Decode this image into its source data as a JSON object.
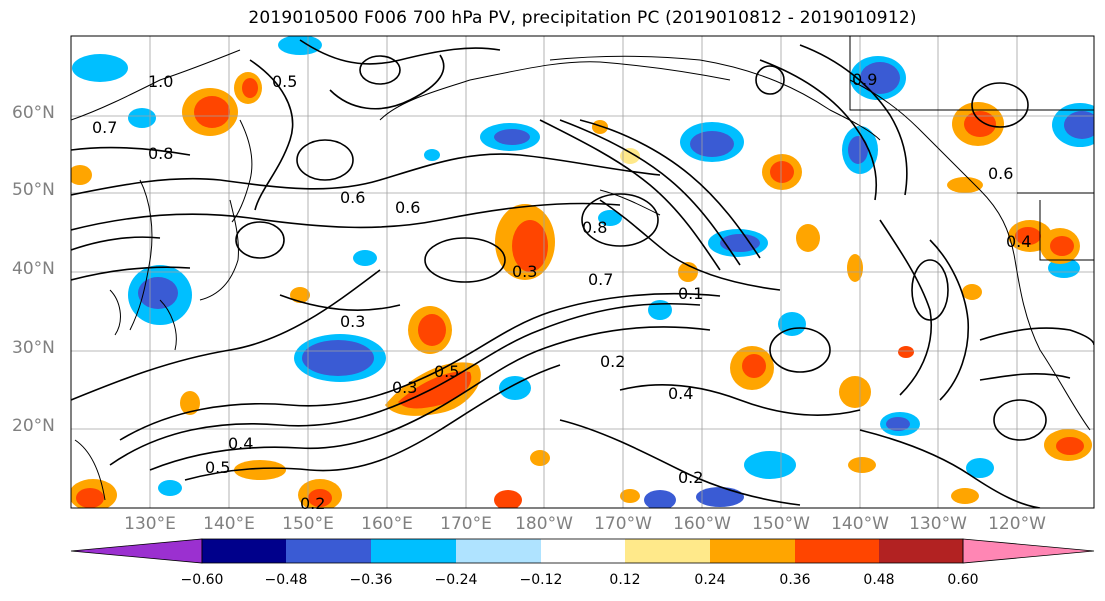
{
  "title": "2019010500 F006 700 hPa PV, precipitation PC (2019010812 - 2019010912)",
  "map": {
    "lat_labels": [
      "60°N",
      "50°N",
      "40°N",
      "30°N",
      "20°N"
    ],
    "lon_labels": [
      "130°E",
      "140°E",
      "150°E",
      "160°E",
      "170°E",
      "180°W",
      "170°W",
      "160°W",
      "150°W",
      "140°W",
      "130°W",
      "120°W"
    ],
    "contour_labels": [
      "1.0",
      "0.7",
      "0.8",
      "0.5",
      "0.6",
      "0.3",
      "0.4",
      "0.2",
      "0.5",
      "0.6",
      "0.7",
      "0.3",
      "0.4",
      "0.2",
      "0.5",
      "0.3",
      "0.2",
      "0.1",
      "0.8",
      "0.9",
      "0.6",
      "0.4"
    ],
    "colors": {
      "land_edge": "#000000",
      "contour": "#000000",
      "grid": "#a0a0a0"
    }
  },
  "colorbar": {
    "colors": [
      "#9b30d0",
      "#00008b",
      "#3a5bd4",
      "#00bfff",
      "#afe3ff",
      "#ffffff",
      "#ffe98a",
      "#ffa500",
      "#ff4500",
      "#b22222",
      "#ff86b4"
    ],
    "ticks": [
      "−0.60",
      "−0.48",
      "−0.36",
      "−0.24",
      "−0.12",
      "0.12",
      "0.24",
      "0.36",
      "0.48",
      "0.60"
    ]
  }
}
